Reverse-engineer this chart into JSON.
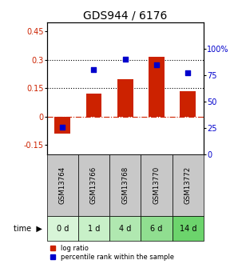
{
  "title": "GDS944 / 6176",
  "samples": [
    "GSM13764",
    "GSM13766",
    "GSM13768",
    "GSM13770",
    "GSM13772"
  ],
  "time_labels": [
    "0 d",
    "1 d",
    "4 d",
    "6 d",
    "14 d"
  ],
  "log_ratio": [
    -0.09,
    0.12,
    0.2,
    0.315,
    0.135
  ],
  "percentile_rank": [
    26,
    80,
    90,
    85,
    77
  ],
  "bar_color": "#cc2200",
  "dot_color": "#0000cc",
  "ylim_left": [
    -0.2,
    0.5
  ],
  "ylim_right": [
    0,
    125
  ],
  "yticks_left": [
    -0.15,
    0.0,
    0.15,
    0.3,
    0.45
  ],
  "yticks_right": [
    0,
    25,
    50,
    75,
    100
  ],
  "hline_y": [
    0.15,
    0.3
  ],
  "zero_line_y": 0.0,
  "sample_bg": "#c8c8c8",
  "time_bg_colors": [
    "#d8f5d8",
    "#c8f0c8",
    "#b0e8b0",
    "#90de90",
    "#6cd46c"
  ],
  "legend_bar_label": "log ratio",
  "legend_dot_label": "percentile rank within the sample",
  "title_fontsize": 10,
  "tick_fontsize": 7,
  "bar_width": 0.5
}
